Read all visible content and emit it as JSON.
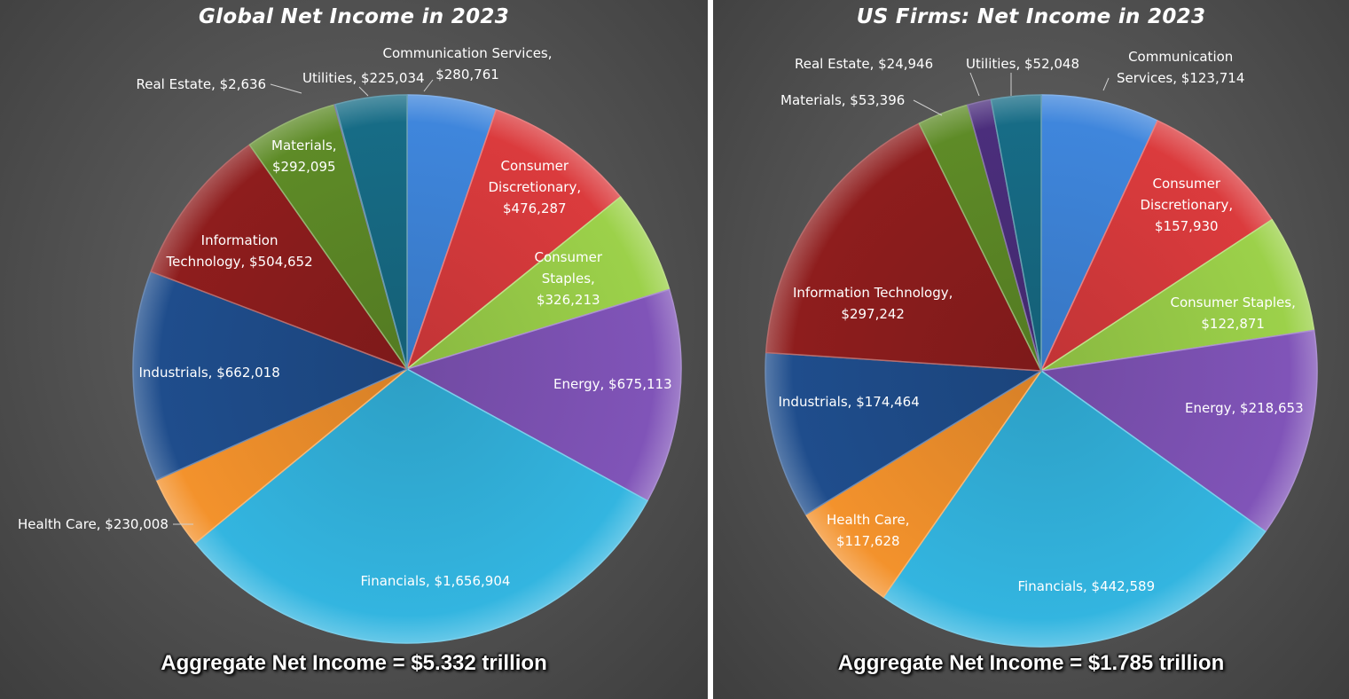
{
  "chart_data": [
    {
      "type": "pie",
      "title": "Global Net Income in 2023",
      "footer": "Aggregate Net Income =  $5.332 trillion",
      "slices": [
        {
          "name": "Communication Services",
          "value": 280761,
          "label": "Communication Services,\n$280,761",
          "color": "#3f86dc"
        },
        {
          "name": "Consumer Discretionary",
          "value": 476287,
          "label": "Consumer\nDiscretionary,\n$476,287",
          "color": "#db3b3d"
        },
        {
          "name": "Consumer Staples",
          "value": 326213,
          "label": "Consumer\nStaples,\n$326,213",
          "color": "#9cd14a"
        },
        {
          "name": "Energy",
          "value": 675113,
          "label": "Energy, $675,113",
          "color": "#8054b8"
        },
        {
          "name": "Financials",
          "value": 1656904,
          "label": "Financials, $1,656,904",
          "color": "#33b5e0"
        },
        {
          "name": "Health Care",
          "value": 230008,
          "label": "Health Care, $230,008",
          "color": "#f3922c"
        },
        {
          "name": "Industrials",
          "value": 662018,
          "label": "Industrials, $662,018",
          "color": "#1f4d8c"
        },
        {
          "name": "Information Technology",
          "value": 504652,
          "label": "Information\nTechnology, $504,652",
          "color": "#8e1d1d"
        },
        {
          "name": "Materials",
          "value": 292095,
          "label": "Materials,\n$292,095",
          "color": "#5e8b27"
        },
        {
          "name": "Real Estate",
          "value": 2636,
          "label": "Real Estate, $2,636",
          "color": "#4b2e7c"
        },
        {
          "name": "Utilities",
          "value": 225034,
          "label": "Utilities, $225,034",
          "color": "#176c86"
        }
      ]
    },
    {
      "type": "pie",
      "title": "US Firms: Net Income in 2023",
      "footer": "Aggregate Net Income =  $1.785 trillion",
      "slices": [
        {
          "name": "Communication Services",
          "value": 123714,
          "label": "Communication\nServices, $123,714",
          "color": "#3f86dc"
        },
        {
          "name": "Consumer Discretionary",
          "value": 157930,
          "label": "Consumer\nDiscretionary,\n$157,930",
          "color": "#db3b3d"
        },
        {
          "name": "Consumer Staples",
          "value": 122871,
          "label": "Consumer Staples,\n$122,871",
          "color": "#9cd14a"
        },
        {
          "name": "Energy",
          "value": 218653,
          "label": "Energy, $218,653",
          "color": "#8054b8"
        },
        {
          "name": "Financials",
          "value": 442589,
          "label": "Financials, $442,589",
          "color": "#33b5e0"
        },
        {
          "name": "Health Care",
          "value": 117628,
          "label": "Health Care,\n$117,628",
          "color": "#f3922c"
        },
        {
          "name": "Industrials",
          "value": 174464,
          "label": "Industrials, $174,464",
          "color": "#1f4d8c"
        },
        {
          "name": "Information Technology",
          "value": 297242,
          "label": "Information Technology,\n$297,242",
          "color": "#8e1d1d"
        },
        {
          "name": "Materials",
          "value": 53396,
          "label": "Materials, $53,396",
          "color": "#5e8b27"
        },
        {
          "name": "Real Estate",
          "value": 24946,
          "label": "Real Estate, $24,946",
          "color": "#4b2e7c"
        },
        {
          "name": "Utilities",
          "value": 52048,
          "label": "Utilities, $52,048",
          "color": "#176c86"
        }
      ]
    }
  ]
}
